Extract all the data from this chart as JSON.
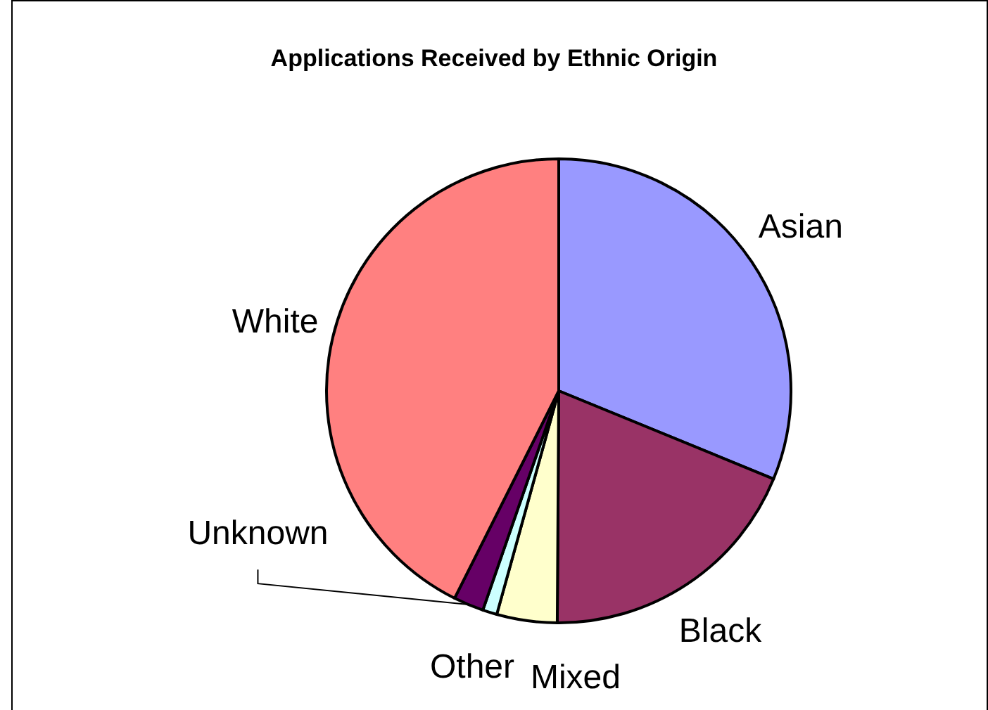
{
  "chart_data": {
    "type": "pie",
    "title": "Applications Received by Ethnic Origin",
    "categories": [
      "Asian",
      "Black",
      "Mixed",
      "Other",
      "Unknown",
      "White"
    ],
    "values": [
      31.2,
      18.9,
      4.2,
      1.0,
      2.1,
      42.6
    ],
    "colors": [
      "#9999ff",
      "#993366",
      "#ffffcc",
      "#ccffff",
      "#660066",
      "#ff8080"
    ]
  }
}
